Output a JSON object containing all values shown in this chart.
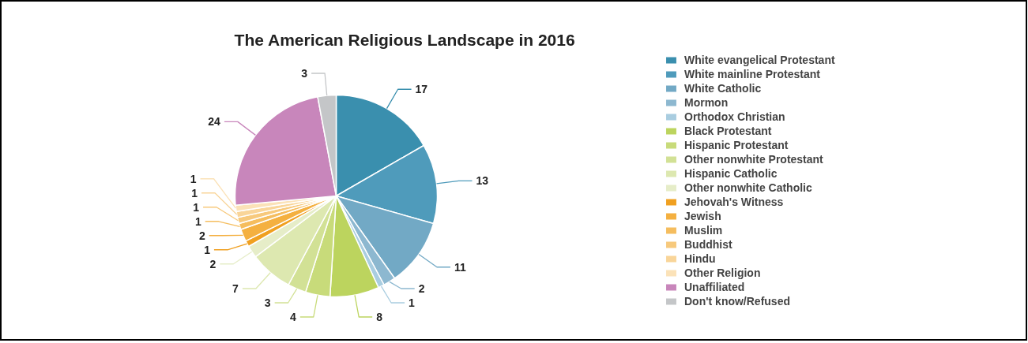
{
  "chart_data": {
    "type": "pie",
    "title": "The American Religious Landscape in 2016",
    "categories": [
      "White evangelical Protestant",
      "White mainline Protestant",
      "White Catholic",
      "Mormon",
      "Orthodox Christian",
      "Black Protestant",
      "Hispanic Protestant",
      "Other nonwhite Protestant",
      "Hispanic Catholic",
      "Other nonwhite Catholic",
      "Jehovah's Witness",
      "Jewish",
      "Muslim",
      "Buddhist",
      "Hindu",
      "Other Religion",
      "Unaffiliated",
      "Don't know/Refused"
    ],
    "values": [
      17,
      13,
      11,
      2,
      1,
      8,
      4,
      3,
      7,
      2,
      1,
      2,
      1,
      1,
      1,
      1,
      24,
      3
    ],
    "colors": [
      "#3a8fae",
      "#4f9bbb",
      "#72a9c5",
      "#8db8d0",
      "#a9cde0",
      "#bcd45e",
      "#c8db7a",
      "#d2e195",
      "#dde8b0",
      "#e6edc8",
      "#f0a020",
      "#f4b040",
      "#f5bd5e",
      "#f7c97c",
      "#f9d599",
      "#fbe2b8",
      "#c886bb",
      "#c4c6c8"
    ],
    "data_labels": true,
    "legend": "right"
  }
}
